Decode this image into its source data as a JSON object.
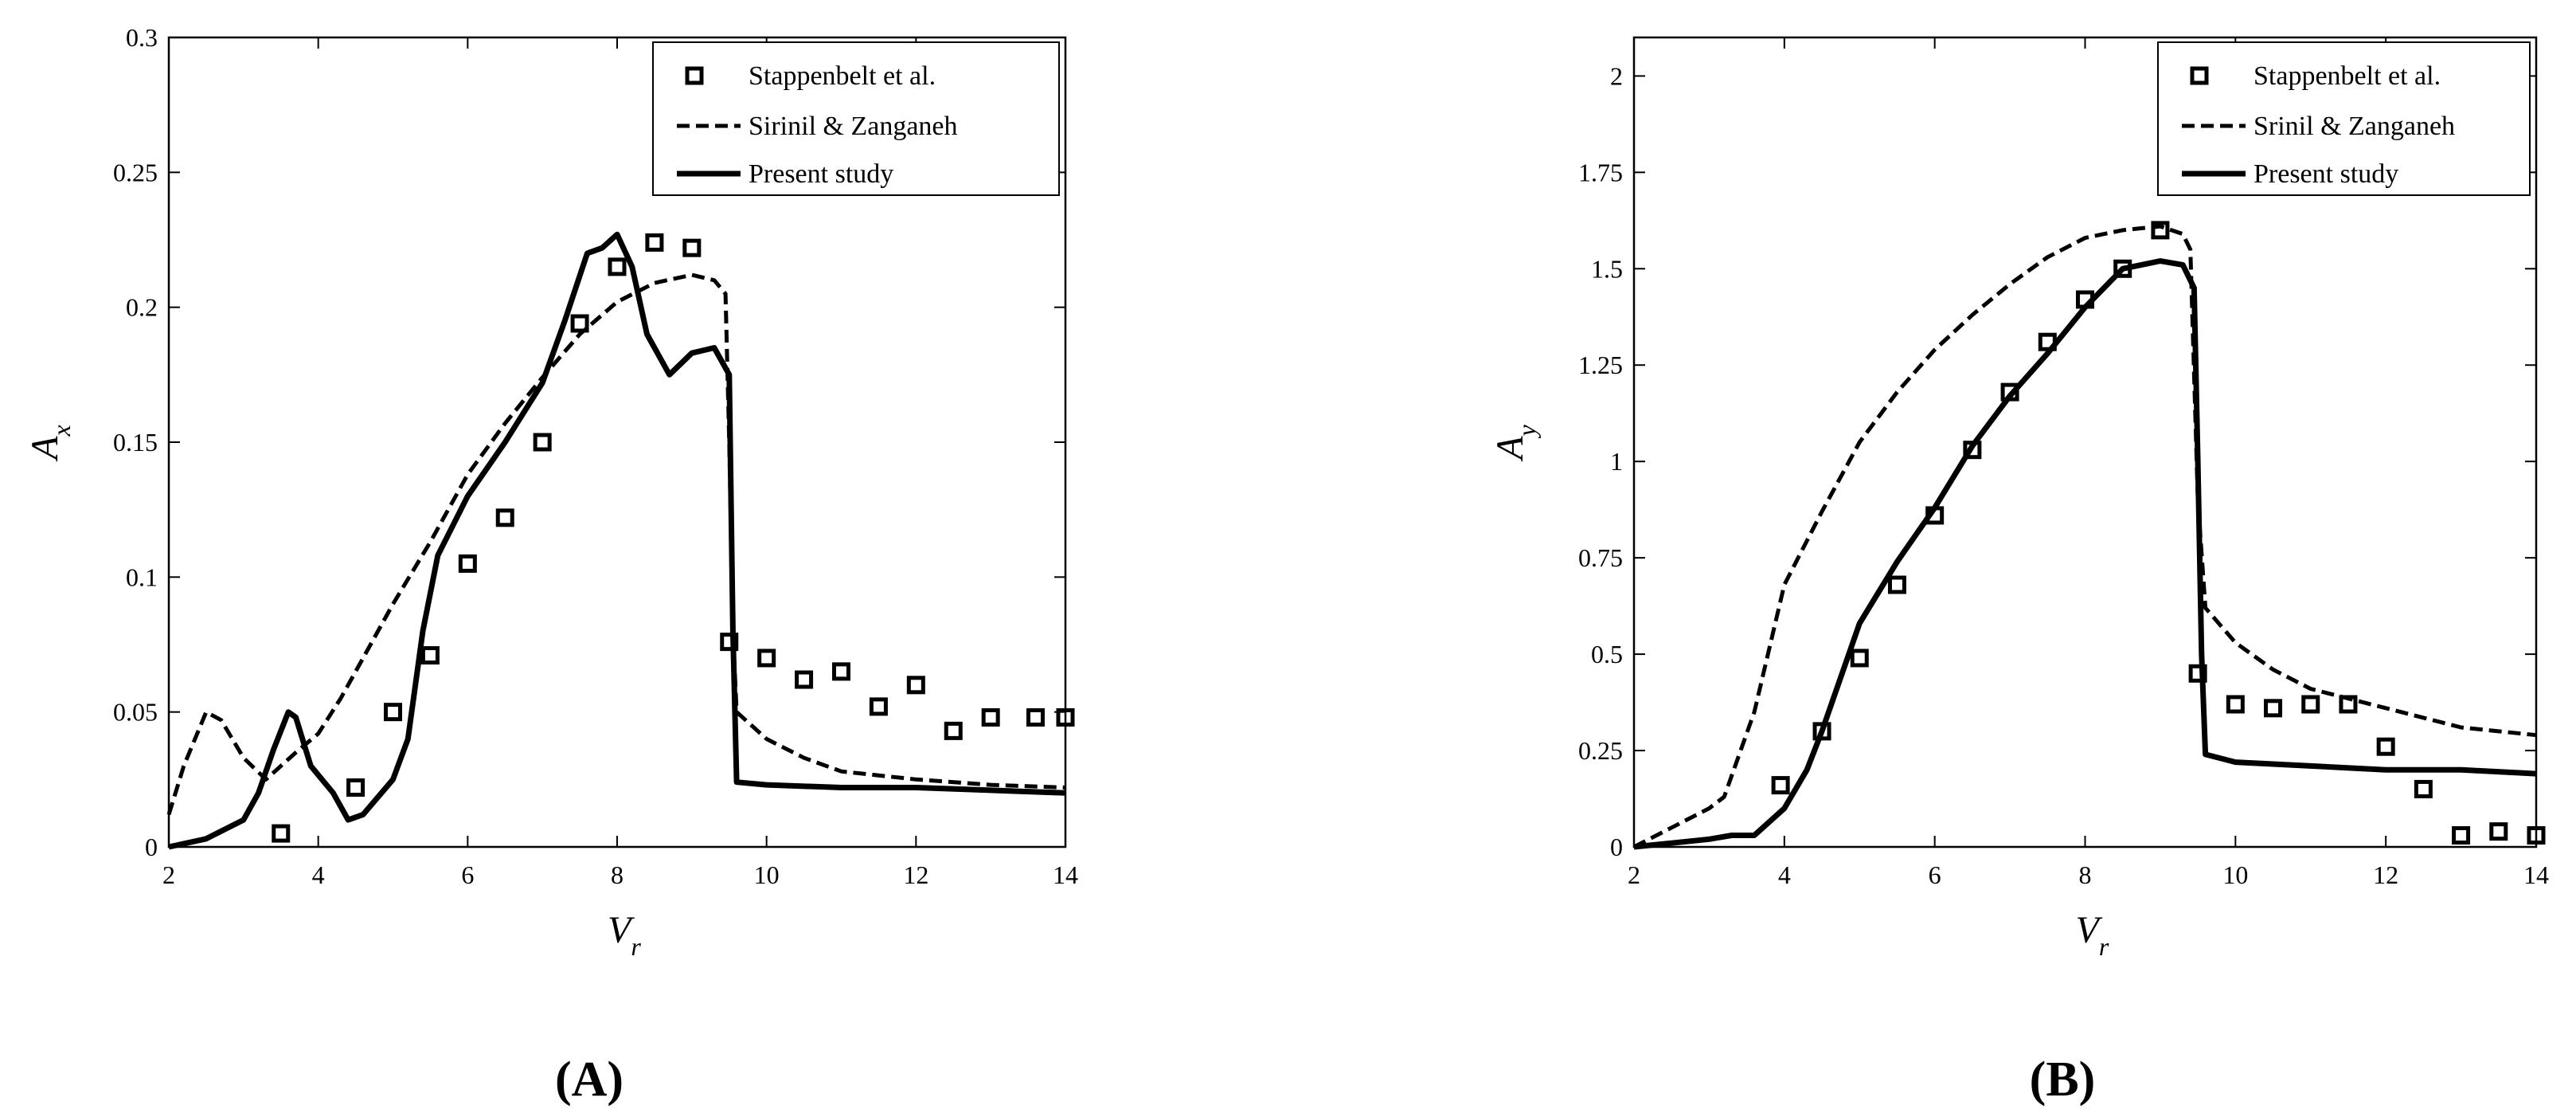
{
  "chart_data": [
    {
      "type": "line",
      "panel_label": "(A)",
      "xlabel": "V",
      "xlabel_sub": "r",
      "ylabel": "A",
      "ylabel_sub": "x",
      "xlim": [
        2,
        14
      ],
      "ylim": [
        0,
        0.3
      ],
      "xticks": [
        2,
        4,
        6,
        8,
        10,
        12,
        14
      ],
      "yticks": [
        0,
        0.05,
        0.1,
        0.15,
        0.2,
        0.25,
        0.3
      ],
      "ytick_labels": [
        "0",
        "0.05",
        "0.1",
        "0.15",
        "0.2",
        "0.25",
        "0.3"
      ],
      "grid": false,
      "legend_position": "top-right",
      "series": [
        {
          "name": "Stappenbelt et al.",
          "style": "square-markers",
          "x": [
            3.5,
            4.5,
            5.0,
            5.5,
            6.0,
            6.5,
            7.0,
            7.5,
            8.0,
            8.5,
            9.0,
            9.5,
            10.0,
            10.5,
            11.0,
            11.5,
            12.0,
            12.5,
            13.0,
            13.6,
            14.0
          ],
          "y": [
            0.005,
            0.022,
            0.05,
            0.071,
            0.105,
            0.122,
            0.15,
            0.194,
            0.215,
            0.224,
            0.222,
            0.076,
            0.07,
            0.062,
            0.065,
            0.052,
            0.06,
            0.043,
            0.048,
            0.048,
            0.048
          ]
        },
        {
          "name": "Sirinil & Zanganeh",
          "style": "dashed",
          "x": [
            2.0,
            2.2,
            2.5,
            2.7,
            3.0,
            3.3,
            3.7,
            4.0,
            4.3,
            4.6,
            5.0,
            5.5,
            6.0,
            6.5,
            7.0,
            7.5,
            8.0,
            8.5,
            9.0,
            9.3,
            9.45,
            9.5,
            9.55,
            9.6,
            10.0,
            10.5,
            11.0,
            12.0,
            13.0,
            14.0
          ],
          "y": [
            0.012,
            0.03,
            0.05,
            0.047,
            0.033,
            0.025,
            0.035,
            0.042,
            0.055,
            0.07,
            0.09,
            0.113,
            0.138,
            0.157,
            0.174,
            0.19,
            0.202,
            0.209,
            0.212,
            0.21,
            0.205,
            0.15,
            0.08,
            0.05,
            0.04,
            0.033,
            0.028,
            0.025,
            0.023,
            0.022
          ]
        },
        {
          "name": "Present study",
          "style": "solid",
          "x": [
            2.0,
            2.5,
            3.0,
            3.2,
            3.4,
            3.6,
            3.7,
            3.9,
            4.2,
            4.4,
            4.6,
            5.0,
            5.2,
            5.4,
            5.6,
            6.0,
            6.5,
            7.0,
            7.3,
            7.6,
            7.8,
            8.0,
            8.2,
            8.4,
            8.7,
            9.0,
            9.3,
            9.5,
            9.55,
            9.6,
            10.0,
            11.0,
            12.0,
            13.0,
            14.0
          ],
          "y": [
            0.0,
            0.003,
            0.01,
            0.02,
            0.036,
            0.05,
            0.048,
            0.03,
            0.02,
            0.01,
            0.012,
            0.025,
            0.04,
            0.08,
            0.108,
            0.13,
            0.15,
            0.172,
            0.195,
            0.22,
            0.222,
            0.227,
            0.215,
            0.19,
            0.175,
            0.183,
            0.185,
            0.175,
            0.08,
            0.024,
            0.023,
            0.022,
            0.022,
            0.021,
            0.02
          ]
        }
      ]
    },
    {
      "type": "line",
      "panel_label": "(B)",
      "xlabel": "V",
      "xlabel_sub": "r",
      "ylabel": "A",
      "ylabel_sub": "y",
      "xlim": [
        2,
        14
      ],
      "ylim": [
        0,
        2.1
      ],
      "xticks": [
        2,
        4,
        6,
        8,
        10,
        12,
        14
      ],
      "yticks": [
        0,
        0.25,
        0.5,
        0.75,
        1,
        1.25,
        1.5,
        1.75,
        2
      ],
      "ytick_labels": [
        "0",
        "0.25",
        "0.5",
        "0.75",
        "1",
        "1.25",
        "1.5",
        "1.75",
        "2"
      ],
      "grid": false,
      "legend_position": "top-right",
      "series": [
        {
          "name": "Stappenbelt et al.",
          "style": "square-markers",
          "x": [
            3.95,
            4.5,
            5.0,
            5.5,
            6.0,
            6.5,
            7.0,
            7.5,
            8.0,
            8.5,
            9.0,
            9.5,
            10.0,
            10.5,
            11.0,
            11.5,
            12.0,
            12.5,
            13.0,
            13.5,
            14.0
          ],
          "y": [
            0.16,
            0.3,
            0.49,
            0.68,
            0.86,
            1.03,
            1.18,
            1.31,
            1.42,
            1.5,
            1.6,
            0.45,
            0.37,
            0.36,
            0.37,
            0.37,
            0.26,
            0.15,
            0.03,
            0.04,
            0.03
          ]
        },
        {
          "name": "Srinil & Zanganeh",
          "style": "dashed",
          "x": [
            2.0,
            2.5,
            3.0,
            3.2,
            3.6,
            4.0,
            4.5,
            5.0,
            5.5,
            6.0,
            6.5,
            7.0,
            7.5,
            8.0,
            8.5,
            9.0,
            9.3,
            9.4,
            9.5,
            9.6,
            10.0,
            10.5,
            11.0,
            12.0,
            13.0,
            14.0
          ],
          "y": [
            0.0,
            0.05,
            0.1,
            0.13,
            0.35,
            0.68,
            0.87,
            1.05,
            1.18,
            1.29,
            1.38,
            1.46,
            1.53,
            1.58,
            1.6,
            1.61,
            1.59,
            1.55,
            0.9,
            0.62,
            0.53,
            0.46,
            0.41,
            0.36,
            0.31,
            0.29
          ]
        },
        {
          "name": "Present study",
          "style": "solid",
          "x": [
            2.0,
            2.5,
            3.0,
            3.3,
            3.6,
            4.0,
            4.3,
            4.5,
            5.0,
            5.5,
            6.0,
            6.5,
            7.0,
            7.5,
            8.0,
            8.5,
            9.0,
            9.3,
            9.45,
            9.5,
            9.55,
            9.6,
            10.0,
            11.0,
            12.0,
            13.0,
            14.0
          ],
          "y": [
            0.0,
            0.01,
            0.02,
            0.03,
            0.03,
            0.1,
            0.2,
            0.3,
            0.58,
            0.74,
            0.88,
            1.04,
            1.17,
            1.28,
            1.4,
            1.5,
            1.52,
            1.51,
            1.45,
            1.0,
            0.5,
            0.24,
            0.22,
            0.21,
            0.2,
            0.2,
            0.19
          ]
        }
      ]
    }
  ]
}
